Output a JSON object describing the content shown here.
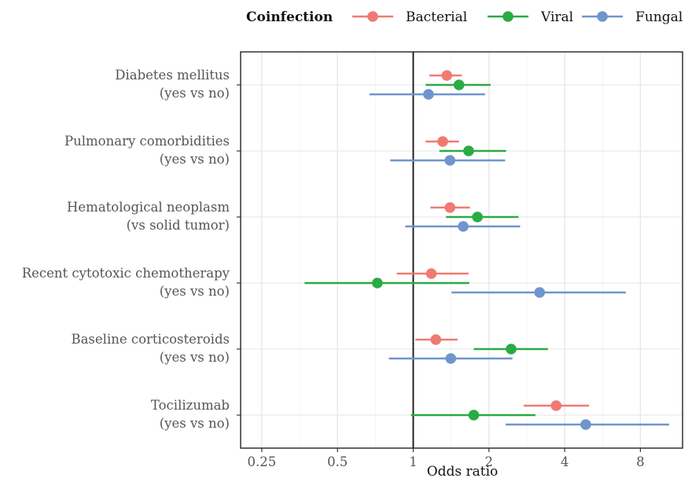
{
  "chart_data": {
    "type": "forest",
    "xlabel": "Odds ratio",
    "x_scale": "log2",
    "xlim": [
      0.2,
      11
    ],
    "x_ticks": [
      {
        "value": 0.25,
        "label": "0.25"
      },
      {
        "value": 0.5,
        "label": "0.5"
      },
      {
        "value": 1,
        "label": "1"
      },
      {
        "value": 2,
        "label": "2"
      },
      {
        "value": 4,
        "label": "4"
      },
      {
        "value": 8,
        "label": "8"
      }
    ],
    "reference_line": 1,
    "grid": true,
    "legend": {
      "title": "Coinfection",
      "position": "top",
      "items": [
        {
          "label": "Bacterial",
          "color": "#f07a72"
        },
        {
          "label": "Viral",
          "color": "#2aab44"
        },
        {
          "label": "Fungal",
          "color": "#6f95cc"
        }
      ]
    },
    "categories": [
      {
        "line1": "Diabetes mellitus",
        "line2": "(yes vs no)"
      },
      {
        "line1": "Pulmonary comorbidities",
        "line2": "(yes vs no)"
      },
      {
        "line1": "Hematological neoplasm",
        "line2": "(vs solid tumor)"
      },
      {
        "line1": "Recent cytotoxic chemotherapy",
        "line2": "(yes vs no)"
      },
      {
        "line1": "Baseline corticosteroids",
        "line2": "(yes vs no)"
      },
      {
        "line1": "Tocilizumab",
        "line2": "(yes vs no)"
      }
    ],
    "series": [
      {
        "name": "Bacterial",
        "color": "#f07a72",
        "estimates": [
          1.36,
          1.31,
          1.4,
          1.18,
          1.23,
          3.7
        ],
        "lower": [
          1.16,
          1.12,
          1.17,
          0.86,
          1.02,
          2.75
        ],
        "upper": [
          1.56,
          1.52,
          1.68,
          1.66,
          1.5,
          5.0
        ]
      },
      {
        "name": "Viral",
        "color": "#2aab44",
        "estimates": [
          1.52,
          1.66,
          1.8,
          0.72,
          2.45,
          1.74
        ],
        "lower": [
          1.12,
          1.27,
          1.35,
          0.37,
          1.74,
          0.98
        ],
        "upper": [
          2.03,
          2.34,
          2.62,
          1.67,
          3.43,
          3.06
        ]
      },
      {
        "name": "Fungal",
        "color": "#6f95cc",
        "estimates": [
          1.15,
          1.4,
          1.58,
          3.18,
          1.41,
          4.85
        ],
        "lower": [
          0.67,
          0.81,
          0.93,
          1.42,
          0.8,
          2.33
        ],
        "upper": [
          1.93,
          2.32,
          2.66,
          7.0,
          2.48,
          10.4
        ]
      }
    ]
  }
}
